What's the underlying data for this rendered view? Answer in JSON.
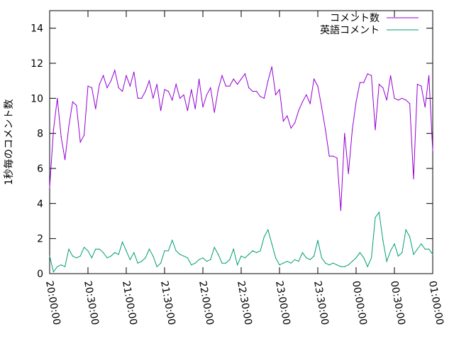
{
  "chart_data": {
    "type": "line",
    "ylabel": "1秒毎のコメント数",
    "xlabel": "",
    "ylim": [
      0,
      15
    ],
    "yticks": [
      0,
      2,
      4,
      6,
      8,
      10,
      12,
      14
    ],
    "xticks": [
      "20:00:00",
      "20:30:00",
      "21:00:00",
      "21:30:00",
      "22:00:00",
      "22:30:00",
      "23:00:00",
      "23:30:00",
      "00:00:00",
      "00:30:00",
      "01:00:00"
    ],
    "x_range": [
      "20:00:00",
      "01:00:00"
    ],
    "grid": false,
    "legend_position": "top-right",
    "series": [
      {
        "name": "コメント数",
        "color": "#9400d3",
        "values": [
          4.9,
          8.2,
          10.0,
          7.8,
          6.5,
          8.4,
          9.8,
          9.6,
          7.5,
          7.9,
          10.7,
          10.6,
          9.4,
          10.8,
          11.3,
          10.6,
          11.0,
          11.6,
          10.6,
          10.4,
          11.3,
          10.7,
          11.5,
          10.0,
          10.0,
          10.4,
          11.0,
          10.0,
          10.8,
          9.3,
          10.5,
          10.4,
          9.9,
          10.8,
          10.0,
          10.2,
          9.3,
          10.5,
          9.4,
          11.1,
          9.5,
          10.2,
          10.6,
          9.2,
          10.5,
          11.3,
          10.7,
          10.7,
          11.1,
          10.8,
          11.1,
          11.4,
          10.6,
          10.4,
          10.4,
          10.1,
          10.0,
          11.0,
          11.8,
          10.2,
          10.5,
          8.7,
          9.0,
          8.3,
          8.6,
          9.3,
          9.8,
          10.2,
          9.7,
          11.1,
          10.7,
          9.5,
          8.2,
          6.7,
          6.7,
          6.6,
          3.6,
          8.0,
          5.7,
          8.2,
          9.8,
          10.9,
          10.9,
          11.4,
          11.3,
          8.2,
          10.8,
          10.6,
          9.9,
          11.3,
          10.0,
          9.9,
          10.0,
          9.9,
          9.7,
          5.4,
          10.8,
          10.7,
          9.5,
          11.3,
          7.0
        ]
      },
      {
        "name": "英語コメント",
        "color": "#009e73",
        "values": [
          1.0,
          0.1,
          0.4,
          0.5,
          0.4,
          1.4,
          1.0,
          0.9,
          1.0,
          1.5,
          1.3,
          0.9,
          1.4,
          1.4,
          1.2,
          0.9,
          1.0,
          1.2,
          1.1,
          1.8,
          1.3,
          0.8,
          1.2,
          0.6,
          0.7,
          0.9,
          1.4,
          1.0,
          0.4,
          0.6,
          1.3,
          1.3,
          1.9,
          1.3,
          1.1,
          1.0,
          0.9,
          0.5,
          0.6,
          0.8,
          0.9,
          0.7,
          0.8,
          1.5,
          1.1,
          0.6,
          0.6,
          0.8,
          1.4,
          0.5,
          1.0,
          0.9,
          1.1,
          1.3,
          1.2,
          1.3,
          2.1,
          2.5,
          1.7,
          0.9,
          0.5,
          0.6,
          0.7,
          0.6,
          0.8,
          0.7,
          1.2,
          0.9,
          0.8,
          1.0,
          1.9,
          0.9,
          0.6,
          0.5,
          0.6,
          0.5,
          0.4,
          0.4,
          0.5,
          0.7,
          0.9,
          1.2,
          0.9,
          0.4,
          0.9,
          3.2,
          3.5,
          1.9,
          0.7,
          1.3,
          1.7,
          1.0,
          1.2,
          2.5,
          2.1,
          1.1,
          1.4,
          1.7,
          1.4,
          1.4,
          1.1
        ]
      }
    ]
  }
}
